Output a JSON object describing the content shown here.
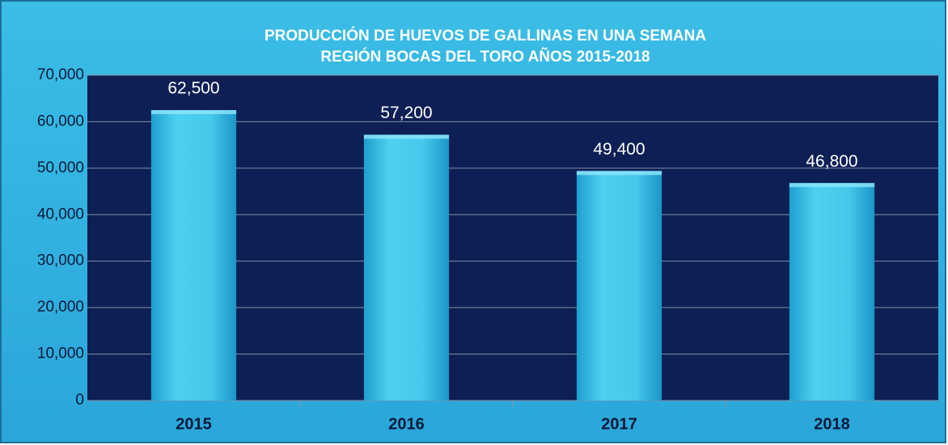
{
  "chart_data": {
    "type": "bar",
    "title": "PRODUCCIÓN DE HUEVOS DE GALLINAS EN UNA SEMANA",
    "subtitle": "REGIÓN BOCAS DEL TORO AÑOS 2015-2018",
    "categories": [
      "2015",
      "2016",
      "2017",
      "2018"
    ],
    "values": [
      62500,
      57200,
      49400,
      46800
    ],
    "value_labels": [
      "62,500",
      "57,200",
      "49,400",
      "46,800"
    ],
    "color": "#3cc4e8",
    "ylim": [
      0,
      70000
    ],
    "yticks": [
      0,
      {
        "value": 10000,
        "label": "10,000"
      },
      {
        "value": 20000,
        "label": "20,000"
      },
      {
        "value": 30000,
        "label": "30,000"
      },
      {
        "value": 40000,
        "label": "40,000"
      },
      {
        "value": 50000,
        "label": "50,000"
      },
      {
        "value": 60000,
        "label": "60,000"
      },
      {
        "value": 70000,
        "label": "70,000"
      }
    ],
    "grid": true
  }
}
